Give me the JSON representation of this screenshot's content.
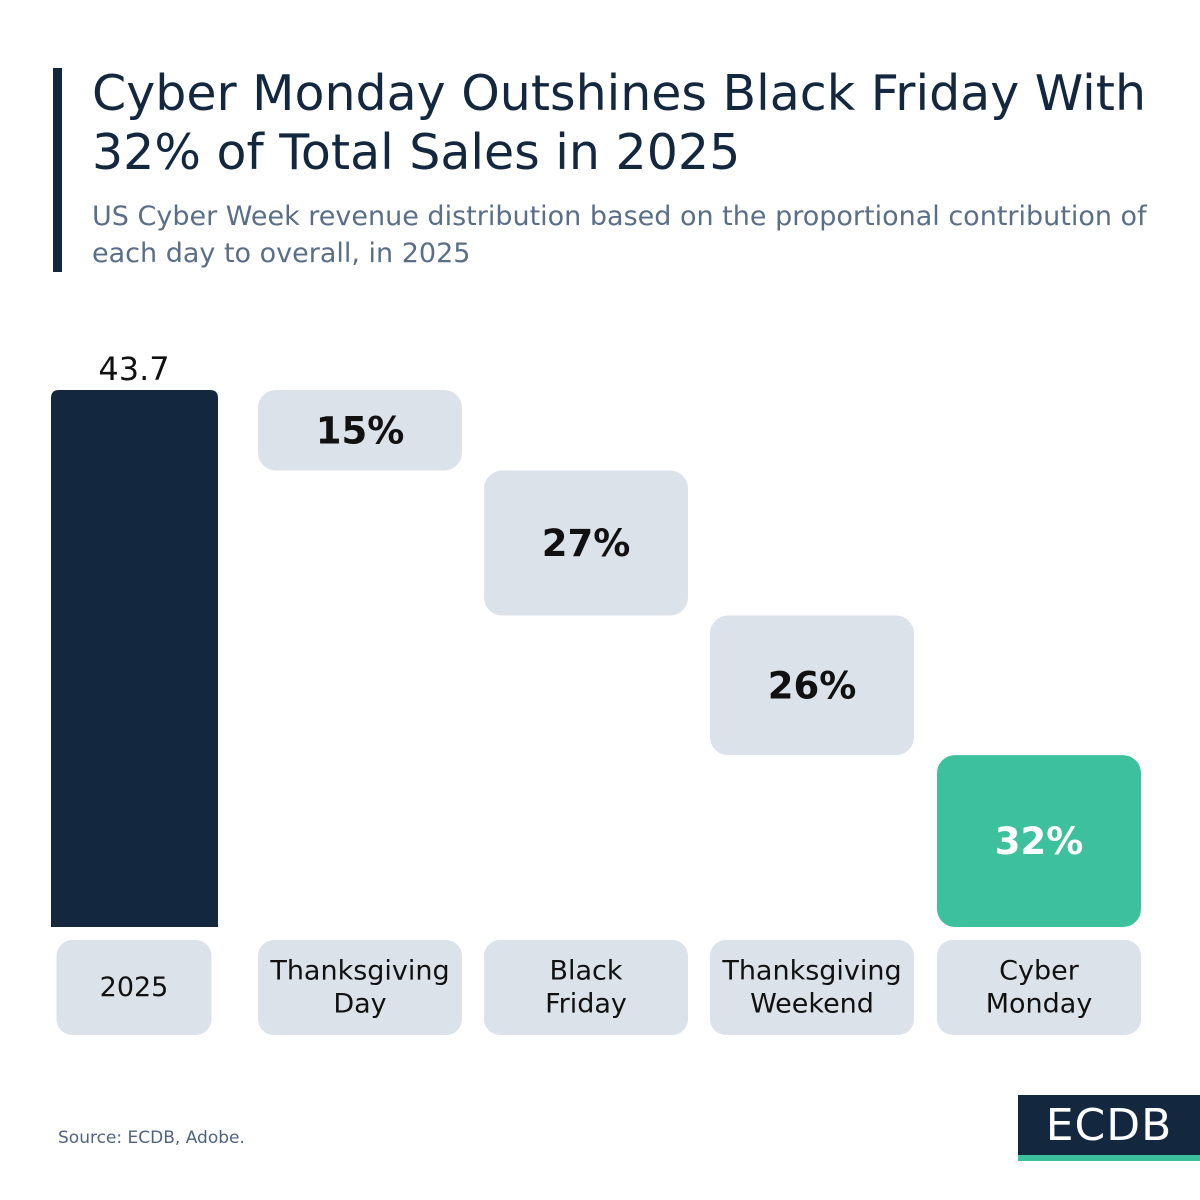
{
  "header": {
    "title": "Cyber Monday Outshines Black Friday With 32% of Total Sales in 2025",
    "subtitle": "US Cyber Week revenue distribution based on the proportional contribution of each day to overall, in 2025"
  },
  "chart_data": {
    "type": "waterfall",
    "total": {
      "category": "2025",
      "value": 43.7,
      "label": "43.7"
    },
    "categories": [
      "Thanksgiving Day",
      "Black Friday",
      "Thanksgiving Weekend",
      "Cyber Monday"
    ],
    "values": [
      15,
      27,
      26,
      32
    ],
    "data_labels": [
      "15%",
      "27%",
      "26%",
      "32%"
    ],
    "highlight": "Cyber Monday",
    "colors": {
      "total": "#13283f",
      "step": "#dbe2ea",
      "highlight": "#3cc19c",
      "label_box": "#dbe2ea"
    }
  },
  "footer": {
    "source": "Source: ECDB, Adobe.",
    "logo": "ECDB"
  }
}
